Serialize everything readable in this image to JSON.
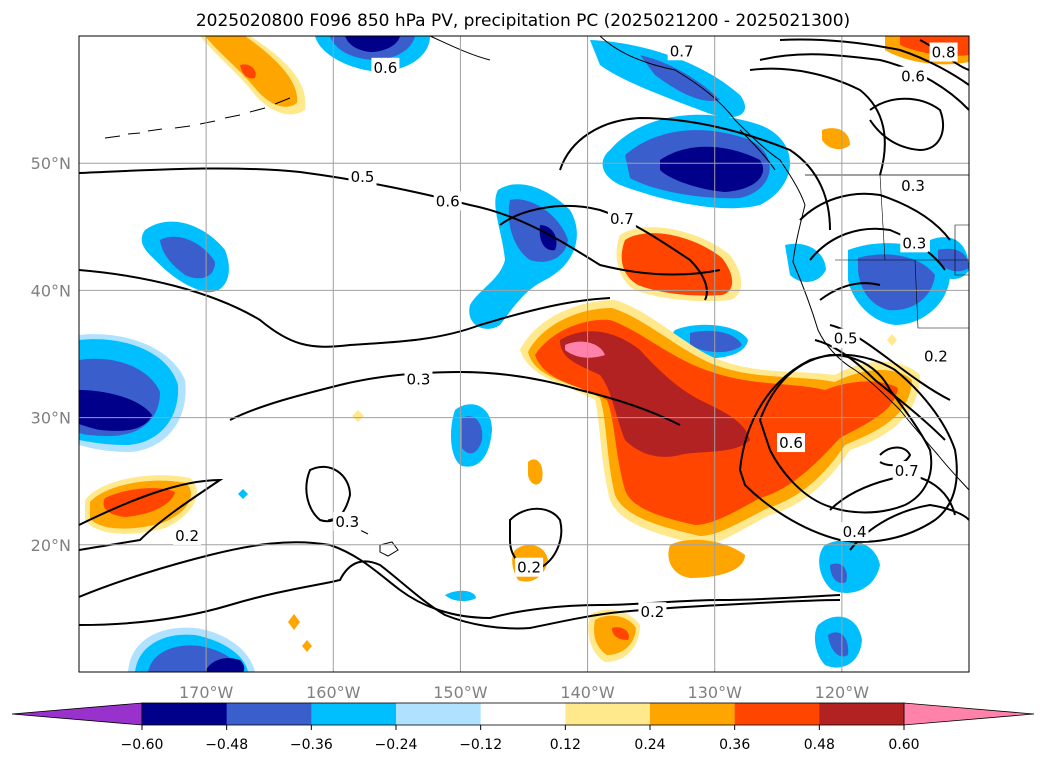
{
  "title": "2025020800 F096 850 hPa PV, precipitation PC (2025021200 - 2025021300)",
  "map": {
    "lon_range": [
      -180,
      -110
    ],
    "lat_range": [
      10,
      60
    ],
    "lon_ticks": [
      {
        "value": -170,
        "label": "170°W"
      },
      {
        "value": -160,
        "label": "160°W"
      },
      {
        "value": -150,
        "label": "150°W"
      },
      {
        "value": -140,
        "label": "140°W"
      },
      {
        "value": -130,
        "label": "130°W"
      },
      {
        "value": -120,
        "label": "120°W"
      }
    ],
    "lat_ticks": [
      {
        "value": 20,
        "label": "20°N"
      },
      {
        "value": 30,
        "label": "30°N"
      },
      {
        "value": 40,
        "label": "40°N"
      },
      {
        "value": 50,
        "label": "50°N"
      }
    ],
    "gridlines": true
  },
  "colorbar": {
    "orientation": "horizontal",
    "extend": "both",
    "levels": [
      -0.6,
      -0.48,
      -0.36,
      -0.24,
      -0.12,
      0.12,
      0.24,
      0.36,
      0.48,
      0.6
    ],
    "tick_labels": [
      "−0.60",
      "−0.48",
      "−0.36",
      "−0.24",
      "−0.12",
      "0.12",
      "0.24",
      "0.36",
      "0.48",
      "0.60"
    ],
    "colors": [
      "#9932cc",
      "#00008b",
      "#3a5fcd",
      "#00bfff",
      "#b0e2ff",
      "#ffffff",
      "#ffe98c",
      "#ffa500",
      "#ff4500",
      "#b22222",
      "#ff82ab"
    ]
  },
  "contour_labels": [
    {
      "text": "0.5",
      "lon": -157.7,
      "lat": 48.9
    },
    {
      "text": "0.6",
      "lon": -151.0,
      "lat": 47.0
    },
    {
      "text": "0.7",
      "lon": -137.3,
      "lat": 45.6
    },
    {
      "text": "0.3",
      "lon": -153.3,
      "lat": 33.0
    },
    {
      "text": "0.3",
      "lon": -158.9,
      "lat": 21.8
    },
    {
      "text": "0.2",
      "lon": -171.5,
      "lat": 20.7
    },
    {
      "text": "0.2",
      "lon": -144.6,
      "lat": 18.2
    },
    {
      "text": "0.2",
      "lon": -134.9,
      "lat": 14.7
    },
    {
      "text": "0.6",
      "lon": -124.0,
      "lat": 28.0
    },
    {
      "text": "0.4",
      "lon": -119.0,
      "lat": 21.0
    },
    {
      "text": "0.5",
      "lon": -119.7,
      "lat": 36.2
    },
    {
      "text": "0.7",
      "lon": -114.9,
      "lat": 25.8
    },
    {
      "text": "0.2",
      "lon": -112.6,
      "lat": 34.8
    },
    {
      "text": "0.3",
      "lon": -114.4,
      "lat": 48.2
    },
    {
      "text": "0.3",
      "lon": -114.3,
      "lat": 43.7
    },
    {
      "text": "0.6",
      "lon": -114.4,
      "lat": 56.8
    },
    {
      "text": "0.7",
      "lon": -132.6,
      "lat": 58.8
    },
    {
      "text": "0.6",
      "lon": -155.9,
      "lat": 57.5
    },
    {
      "text": "0.8",
      "lon": -112.0,
      "lat": 58.7
    }
  ]
}
